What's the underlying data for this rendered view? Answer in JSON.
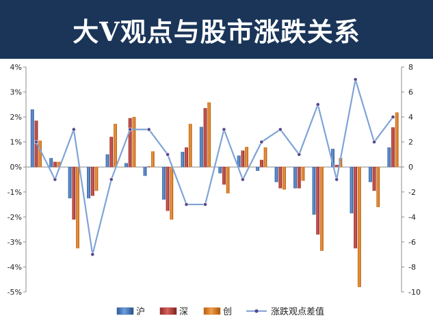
{
  "title": "大V观点与股市涨跌关系",
  "colors": {
    "header_bg": "#1a3558",
    "hu": "#3c6fb3",
    "shen": "#b03a36",
    "chuang": "#e07a1c",
    "diff_line": "#7fa3d6",
    "diff_marker": "#56478f",
    "axis": "#8c8c8c"
  },
  "chart_data": {
    "type": "bar+line",
    "title": "",
    "legend_position": "bottom",
    "grid": false,
    "left_axis": {
      "min": -5,
      "max": 4,
      "ticks": [
        "-5%",
        "-4%",
        "-3%",
        "-2%",
        "-1%",
        "0%",
        "1%",
        "2%",
        "3%",
        "4%"
      ]
    },
    "right_axis": {
      "min": -10,
      "max": 8,
      "ticks": [
        "-10",
        "-8",
        "-6",
        "-4",
        "-2",
        "0",
        "2",
        "4",
        "6",
        "8"
      ]
    },
    "series": [
      {
        "name": "沪",
        "kind": "bar",
        "axis": "left",
        "values": [
          2.3,
          0.35,
          -1.25,
          -1.25,
          0.5,
          0.15,
          -0.35,
          -1.3,
          0.6,
          1.6,
          -0.25,
          0.45,
          -0.15,
          -0.6,
          -0.85,
          -1.9,
          0.72,
          -1.85,
          -0.6,
          0.78
        ]
      },
      {
        "name": "深",
        "kind": "bar",
        "axis": "left",
        "values": [
          1.85,
          0.2,
          -2.1,
          -1.15,
          1.2,
          1.95,
          0.02,
          -1.75,
          0.78,
          2.35,
          -0.7,
          0.65,
          0.28,
          -0.85,
          -0.85,
          -2.7,
          0.08,
          -3.25,
          -0.95,
          1.58
        ]
      },
      {
        "name": "创",
        "kind": "bar",
        "axis": "left",
        "values": [
          1.05,
          0.2,
          -3.25,
          -0.95,
          1.72,
          2.0,
          0.62,
          -2.1,
          1.72,
          2.58,
          -1.05,
          0.8,
          0.78,
          -0.9,
          -0.55,
          -3.35,
          0.35,
          -4.8,
          -1.6,
          2.18
        ]
      },
      {
        "name": "涨跌观点差值",
        "kind": "line",
        "axis": "right",
        "values": [
          2,
          -1,
          3,
          -7,
          -1,
          3,
          3,
          1,
          -3,
          -3,
          3,
          -1,
          2,
          3,
          1,
          5,
          -1,
          7,
          2,
          4
        ]
      }
    ]
  }
}
